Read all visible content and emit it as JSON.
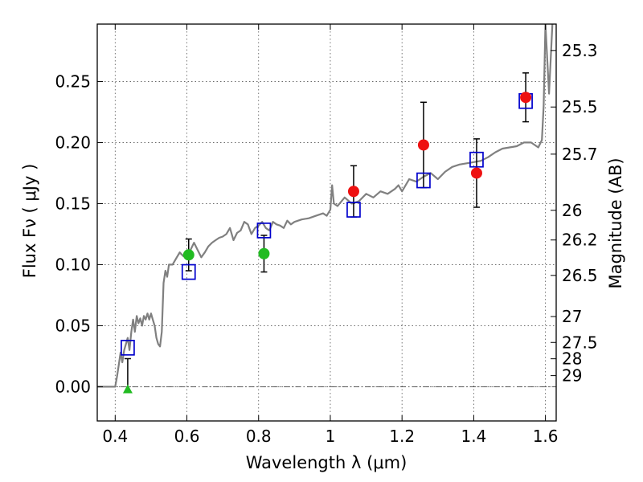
{
  "chart_data": {
    "type": "scatter",
    "title": "",
    "xlabel": "Wavelength  λ (μm)",
    "ylabel": "Flux  Fν  ( μJy )",
    "y2label": "Magnitude (AB)",
    "xlim": [
      0.35,
      1.63
    ],
    "ylim": [
      -0.028,
      0.297
    ],
    "grid": true,
    "legend": "none",
    "xticks": [
      0.4,
      0.6,
      0.8,
      1.0,
      1.2,
      1.4,
      1.6
    ],
    "xtick_labels": [
      "0.4",
      "0.6",
      "0.8",
      "1",
      "1.2",
      "1.4",
      "1.6"
    ],
    "yticks": [
      0.0,
      0.05,
      0.1,
      0.15,
      0.2,
      0.25
    ],
    "ytick_labels": [
      "0.00",
      "0.05",
      "0.10",
      "0.15",
      "0.20",
      "0.25"
    ],
    "y2ticks": [
      {
        "label": "25.3",
        "flux": 0.2754
      },
      {
        "label": "25.5",
        "flux": 0.2291
      },
      {
        "label": "25.7",
        "flux": 0.1905
      },
      {
        "label": "26",
        "flux": 0.1445
      },
      {
        "label": "26.2",
        "flux": 0.1202
      },
      {
        "label": "26.5",
        "flux": 0.0912
      },
      {
        "label": "27",
        "flux": 0.0575
      },
      {
        "label": "27.5",
        "flux": 0.0363
      },
      {
        "label": "28",
        "flux": 0.0229
      },
      {
        "label": "29",
        "flux": 0.0091
      }
    ],
    "colors": {
      "model": "#808080",
      "model_photometry": "#0000cc",
      "optical": "#22bb22",
      "nir": "#ee1111",
      "errorbar": "#000000",
      "grid": "#555555"
    },
    "series": [
      {
        "marker": "line",
        "x": [
          0.35,
          0.36,
          0.37,
          0.38,
          0.39,
          0.4,
          0.405,
          0.41,
          0.415,
          0.42,
          0.425,
          0.43,
          0.435,
          0.44,
          0.445,
          0.45,
          0.455,
          0.46,
          0.465,
          0.47,
          0.475,
          0.48,
          0.485,
          0.49,
          0.495,
          0.5,
          0.505,
          0.51,
          0.515,
          0.52,
          0.525,
          0.53,
          0.535,
          0.54,
          0.545,
          0.55,
          0.56,
          0.57,
          0.58,
          0.59,
          0.6,
          0.61,
          0.62,
          0.63,
          0.64,
          0.65,
          0.66,
          0.67,
          0.68,
          0.69,
          0.7,
          0.71,
          0.72,
          0.73,
          0.74,
          0.75,
          0.76,
          0.77,
          0.78,
          0.79,
          0.8,
          0.81,
          0.82,
          0.83,
          0.84,
          0.85,
          0.86,
          0.87,
          0.88,
          0.89,
          0.9,
          0.92,
          0.94,
          0.96,
          0.98,
          0.99,
          1.0,
          1.005,
          1.01,
          1.02,
          1.04,
          1.06,
          1.08,
          1.1,
          1.12,
          1.14,
          1.16,
          1.18,
          1.19,
          1.2,
          1.22,
          1.24,
          1.26,
          1.28,
          1.3,
          1.32,
          1.34,
          1.36,
          1.38,
          1.4,
          1.42,
          1.44,
          1.46,
          1.48,
          1.5,
          1.52,
          1.54,
          1.56,
          1.58,
          1.59,
          1.595,
          1.6,
          1.61,
          1.62,
          1.63
        ],
        "y": [
          0.0,
          0.0,
          0.0,
          0.0,
          0.0,
          0.0,
          0.008,
          0.018,
          0.028,
          0.02,
          0.03,
          0.035,
          0.04,
          0.03,
          0.045,
          0.055,
          0.045,
          0.058,
          0.052,
          0.056,
          0.05,
          0.058,
          0.055,
          0.06,
          0.055,
          0.06,
          0.055,
          0.05,
          0.04,
          0.035,
          0.033,
          0.045,
          0.085,
          0.095,
          0.09,
          0.1,
          0.1,
          0.105,
          0.11,
          0.107,
          0.11,
          0.112,
          0.118,
          0.112,
          0.106,
          0.11,
          0.115,
          0.118,
          0.12,
          0.122,
          0.123,
          0.125,
          0.13,
          0.12,
          0.126,
          0.128,
          0.135,
          0.133,
          0.125,
          0.13,
          0.132,
          0.135,
          0.13,
          0.128,
          0.135,
          0.133,
          0.132,
          0.13,
          0.136,
          0.133,
          0.135,
          0.137,
          0.138,
          0.14,
          0.142,
          0.14,
          0.145,
          0.165,
          0.15,
          0.148,
          0.155,
          0.15,
          0.152,
          0.158,
          0.155,
          0.16,
          0.158,
          0.162,
          0.165,
          0.16,
          0.17,
          0.168,
          0.172,
          0.175,
          0.17,
          0.176,
          0.18,
          0.182,
          0.183,
          0.184,
          0.185,
          0.188,
          0.192,
          0.195,
          0.196,
          0.197,
          0.2,
          0.2,
          0.196,
          0.202,
          0.23,
          0.297,
          0.24,
          0.3,
          0.3
        ]
      },
      {
        "marker": "open-square",
        "x": [
          0.435,
          0.605,
          0.815,
          1.065,
          1.26,
          1.408,
          1.545
        ],
        "y": [
          0.032,
          0.094,
          0.128,
          0.145,
          0.169,
          0.186,
          0.234
        ]
      },
      {
        "marker": "filled-circle",
        "x": [
          0.605,
          0.815
        ],
        "y": [
          0.108,
          0.109
        ],
        "err": [
          0.013,
          0.015
        ]
      },
      {
        "marker": "filled-circle",
        "x": [
          1.065,
          1.26,
          1.408,
          1.545
        ],
        "y": [
          0.16,
          0.198,
          0.175,
          0.237
        ],
        "err": [
          0.021,
          0.035,
          0.028,
          0.02
        ]
      },
      {
        "marker": "triangle",
        "x": [
          0.435
        ],
        "y": [
          -0.002
        ],
        "err_up": [
          0.025
        ]
      }
    ]
  }
}
